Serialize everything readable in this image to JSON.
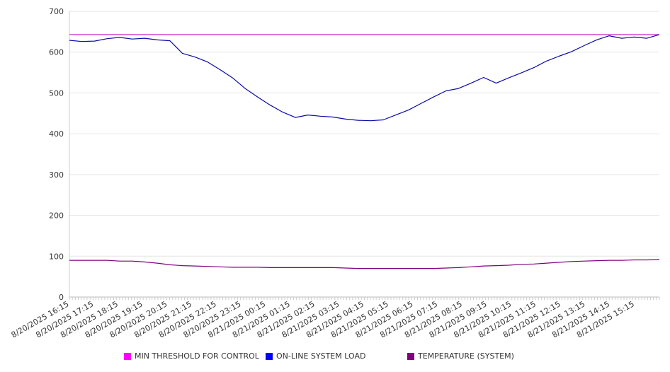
{
  "chart_data": {
    "type": "line",
    "title": "",
    "xlabel": "",
    "ylabel": "",
    "ylim": [
      0,
      700
    ],
    "yticks": [
      0,
      100,
      200,
      300,
      400,
      500,
      600,
      700
    ],
    "grid": true,
    "legend_position": "bottom",
    "x_tick_labels": [
      "8/20/2025 16:15",
      "8/20/2025 17:15",
      "8/20/2025 18:15",
      "8/20/2025 19:15",
      "8/20/2025 20:15",
      "8/20/2025 21:15",
      "8/20/2025 22:15",
      "8/20/2025 23:15",
      "8/21/2025 00:15",
      "8/21/2025 01:15",
      "8/21/2025 02:15",
      "8/21/2025 03:15",
      "8/21/2025 04:15",
      "8/21/2025 05:15",
      "8/21/2025 06:15",
      "8/21/2025 07:15",
      "8/21/2025 08:15",
      "8/21/2025 09:15",
      "8/21/2025 10:15",
      "8/21/2025 11:15",
      "8/21/2025 12:15",
      "8/21/2025 13:15",
      "8/21/2025 14:15",
      "8/21/2025 15:15"
    ],
    "x": [
      "8/20/2025 16:15",
      "8/20/2025 16:45",
      "8/20/2025 17:15",
      "8/20/2025 17:45",
      "8/20/2025 18:15",
      "8/20/2025 18:45",
      "8/20/2025 19:15",
      "8/20/2025 19:45",
      "8/20/2025 20:15",
      "8/20/2025 20:45",
      "8/20/2025 21:15",
      "8/20/2025 21:45",
      "8/20/2025 22:15",
      "8/20/2025 22:45",
      "8/20/2025 23:15",
      "8/20/2025 23:45",
      "8/21/2025 00:15",
      "8/21/2025 00:45",
      "8/21/2025 01:15",
      "8/21/2025 01:45",
      "8/21/2025 02:15",
      "8/21/2025 02:45",
      "8/21/2025 03:15",
      "8/21/2025 03:45",
      "8/21/2025 04:15",
      "8/21/2025 04:45",
      "8/21/2025 05:15",
      "8/21/2025 05:45",
      "8/21/2025 06:15",
      "8/21/2025 06:45",
      "8/21/2025 07:15",
      "8/21/2025 07:45",
      "8/21/2025 08:15",
      "8/21/2025 08:45",
      "8/21/2025 09:15",
      "8/21/2025 09:45",
      "8/21/2025 10:15",
      "8/21/2025 10:45",
      "8/21/2025 11:15",
      "8/21/2025 11:45",
      "8/21/2025 12:15",
      "8/21/2025 12:45",
      "8/21/2025 13:15",
      "8/21/2025 13:45",
      "8/21/2025 14:15",
      "8/21/2025 14:45",
      "8/21/2025 15:15",
      "8/21/2025 15:45"
    ],
    "series": [
      {
        "name": "MIN THRESHOLD FOR CONTROL",
        "color": "#cc33cc",
        "swatch_color": "#ff00ff",
        "values": [
          643,
          643,
          643,
          643,
          643,
          643,
          643,
          643,
          643,
          643,
          643,
          643,
          643,
          643,
          643,
          643,
          643,
          643,
          643,
          643,
          643,
          643,
          643,
          643,
          643,
          643,
          643,
          643,
          643,
          643,
          643,
          643,
          643,
          643,
          643,
          643,
          643,
          643,
          643,
          643,
          643,
          643,
          643,
          643,
          643,
          643,
          643,
          643
        ]
      },
      {
        "name": "ON-LINE SYSTEM LOAD",
        "color": "#0a0aa8",
        "swatch_color": "#0000ff",
        "values": [
          629,
          626,
          627,
          633,
          636,
          632,
          634,
          630,
          628,
          597,
          588,
          576,
          557,
          537,
          511,
          490,
          470,
          453,
          440,
          446,
          443,
          441,
          436,
          433,
          432,
          434,
          446,
          458,
          474,
          490,
          505,
          511,
          524,
          538,
          524,
          537,
          549,
          562,
          578,
          590,
          601,
          616,
          630,
          640,
          634,
          637,
          634,
          643
        ]
      },
      {
        "name": "TEMPERATURE (SYSTEM)",
        "color": "#800080",
        "swatch_color": "#800080",
        "values": [
          90,
          90,
          90,
          90,
          88,
          88,
          86,
          83,
          79,
          77,
          76,
          75,
          74,
          73,
          73,
          73,
          72,
          72,
          72,
          72,
          72,
          72,
          71,
          70,
          70,
          70,
          70,
          70,
          70,
          70,
          71,
          72,
          74,
          76,
          77,
          78,
          80,
          81,
          83,
          85,
          87,
          88,
          89,
          90,
          90,
          91,
          91,
          92
        ]
      }
    ]
  }
}
